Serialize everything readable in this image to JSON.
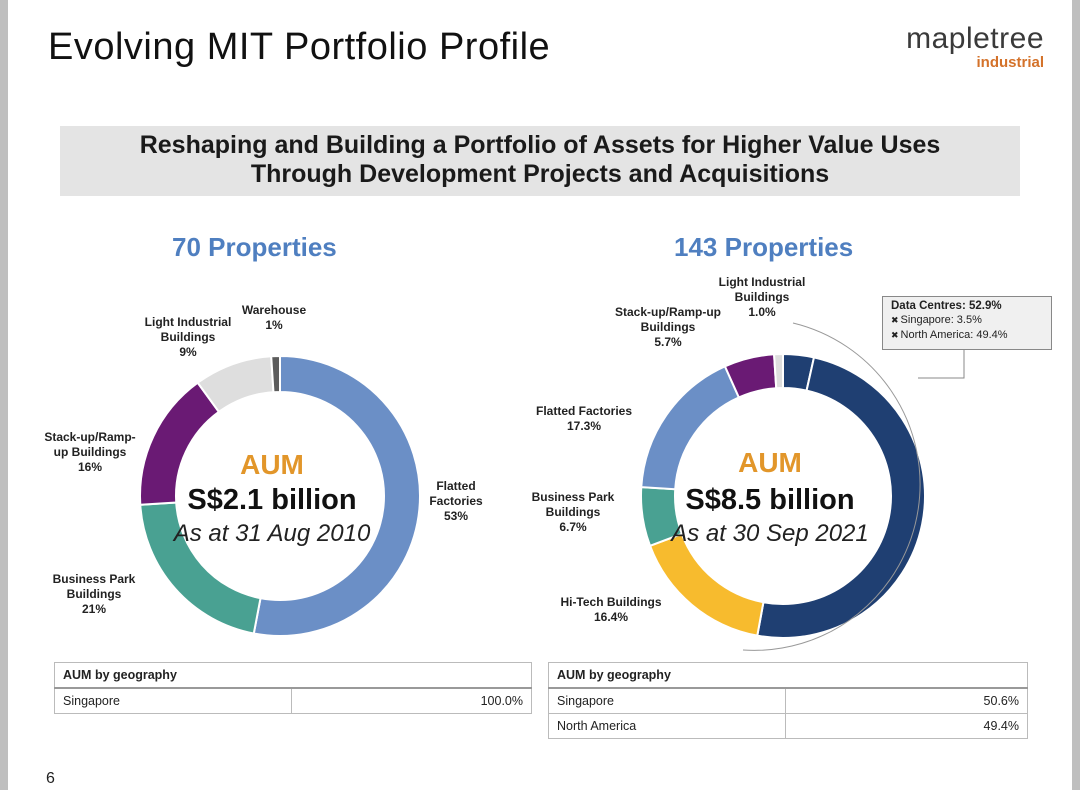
{
  "header": {
    "title": "Evolving MIT Portfolio Profile",
    "logo_main": "mapletree",
    "logo_sub": "industrial"
  },
  "banner": {
    "line1": "Reshaping and Building a Portfolio of Assets for Higher Value Uses",
    "line2": "Through Development Projects and Acquisitions"
  },
  "chart_data": [
    {
      "type": "pie",
      "subtype": "donut",
      "title": "70 Properties",
      "center": {
        "label": "AUM",
        "value": "S$2.1 billion",
        "as_at": "As at 31 Aug 2010"
      },
      "slices": [
        {
          "name": "Flatted Factories",
          "pct_label": "53%",
          "value": 53,
          "color": "#6b8fc6"
        },
        {
          "name": "Business Park Buildings",
          "pct_label": "21%",
          "value": 21,
          "color": "#49a192"
        },
        {
          "name": "Stack-up/Ramp-up Buildings",
          "pct_label": "16%",
          "value": 16,
          "color": "#6a1a74"
        },
        {
          "name": "Light Industrial Buildings",
          "pct_label": "9%",
          "value": 9,
          "color": "#dedede"
        },
        {
          "name": "Warehouse",
          "pct_label": "1%",
          "value": 1,
          "color": "#5c5c5c"
        }
      ],
      "geography": {
        "header": "AUM by geography",
        "rows": [
          {
            "region": "Singapore",
            "value": "100.0%"
          }
        ]
      }
    },
    {
      "type": "pie",
      "subtype": "donut",
      "title": "143 Properties",
      "center": {
        "label": "AUM",
        "value": "S$8.5 billion",
        "as_at": "As at 30 Sep 2021"
      },
      "slices": [
        {
          "name": "Data Centres - Singapore",
          "value": 3.5,
          "color": "#1f3f72"
        },
        {
          "name": "Data Centres - North America",
          "value": 49.4,
          "color": "#1f3f72"
        },
        {
          "name": "Hi-Tech Buildings",
          "pct_label": "16.4%",
          "value": 16.4,
          "color": "#f7bb2e"
        },
        {
          "name": "Business Park Buildings",
          "pct_label": "6.7%",
          "value": 6.7,
          "color": "#49a192"
        },
        {
          "name": "Flatted Factories",
          "pct_label": "17.3%",
          "value": 17.3,
          "color": "#6b8fc6"
        },
        {
          "name": "Stack-up/Ramp-up Buildings",
          "pct_label": "5.7%",
          "value": 5.7,
          "color": "#6a1a74"
        },
        {
          "name": "Light Industrial Buildings",
          "pct_label": "1.0%",
          "value": 1.0,
          "color": "#dedede"
        }
      ],
      "callout": {
        "title": "Data Centres: 52.9%",
        "items": [
          "Singapore: 3.5%",
          "North America: 49.4%"
        ]
      },
      "geography": {
        "header": "AUM by geography",
        "rows": [
          {
            "region": "Singapore",
            "value": "50.6%"
          },
          {
            "region": "North America",
            "value": "49.4%"
          }
        ]
      }
    }
  ],
  "labels_left": {
    "warehouse": [
      "Warehouse",
      "1%"
    ],
    "light_industrial": [
      "Light Industrial",
      "Buildings",
      "9%"
    ],
    "stackup": [
      "Stack-up/Ramp-",
      "up Buildings",
      "16%"
    ],
    "business_park": [
      "Business Park",
      "Buildings",
      "21%"
    ],
    "flatted": [
      "Flatted",
      "Factories",
      "53%"
    ]
  },
  "labels_right": {
    "light_industrial": [
      "Light Industrial",
      "Buildings",
      "1.0%"
    ],
    "stackup": [
      "Stack-up/Ramp-up",
      "Buildings",
      "5.7%"
    ],
    "flatted": [
      "Flatted Factories",
      "17.3%"
    ],
    "business_park": [
      "Business Park",
      "Buildings",
      "6.7%"
    ],
    "hitech": [
      "Hi-Tech Buildings",
      "16.4%"
    ]
  },
  "page_number": "6"
}
